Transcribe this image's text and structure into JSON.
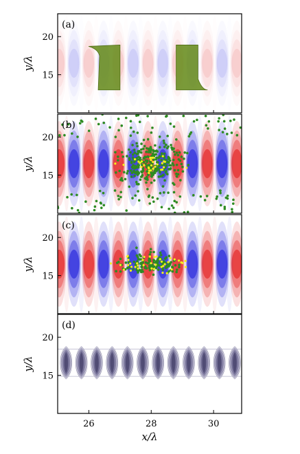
{
  "chart_data": [
    {
      "type": "heatmap",
      "panel_label": "(a)",
      "ylabel": "y/λ",
      "xlim": [
        25,
        30.9
      ],
      "ylim": [
        10,
        23
      ],
      "yticks": [
        15,
        20
      ],
      "field": {
        "colormap": "blue-white-red",
        "wavelength": 0.95,
        "center_y": 16.5,
        "amplitude": 0.18
      },
      "targets": [
        {
          "name": "left-target",
          "x_range": [
            26.3,
            27.0
          ],
          "y_range": [
            13.0,
            18.9
          ],
          "color": "#6b8f23"
        },
        {
          "name": "right-target",
          "x_range": [
            28.8,
            29.5
          ],
          "y_range": [
            13.0,
            18.9
          ],
          "color": "#6b8f23"
        }
      ]
    },
    {
      "type": "heatmap",
      "panel_label": "(b)",
      "ylabel": "y/λ",
      "xlim": [
        25,
        30.9
      ],
      "ylim": [
        10,
        23
      ],
      "yticks": [
        15,
        20
      ],
      "field": {
        "colormap": "blue-white-red",
        "wavelength": 0.95,
        "center_y": 16.5,
        "amplitude": 1.0
      },
      "particles": {
        "green_count": 420,
        "yellow_count": 30,
        "green_color": "#2e8b22",
        "yellow_color": "#f5f01e"
      }
    },
    {
      "type": "heatmap",
      "panel_label": "(c)",
      "ylabel": "y/λ",
      "xlim": [
        25,
        30.9
      ],
      "ylim": [
        10,
        23
      ],
      "yticks": [
        15,
        20
      ],
      "field": {
        "colormap": "blue-white-red",
        "wavelength": 0.95,
        "center_y": 16.5,
        "amplitude": 1.0
      },
      "particles": {
        "green_count": 140,
        "yellow_count": 40,
        "green_color": "#2e8b22",
        "yellow_color": "#f5f01e"
      }
    },
    {
      "type": "heatmap",
      "panel_label": "(d)",
      "ylabel": "y/λ",
      "xlabel": "x/λ",
      "xlim": [
        25,
        30.9
      ],
      "ylim": [
        10,
        23
      ],
      "yticks": [
        15,
        20
      ],
      "xticks": [
        26,
        28,
        30
      ],
      "field": {
        "colormap": "gray-purple",
        "cell_count": 12,
        "y_range": [
          14.5,
          18.8
        ]
      }
    }
  ]
}
